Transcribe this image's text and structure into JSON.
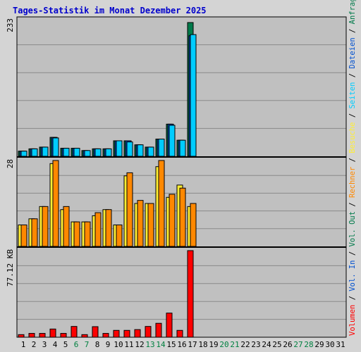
{
  "colors": {
    "background": "#d4d4d4",
    "plot_bg": "#c0c0c0",
    "frame": "#000000",
    "grid": "#8a8a8a",
    "title": "#0000cc",
    "anfragen": "#007a4a",
    "dateien": "#0050d0",
    "seiten": "#00ccff",
    "besuche": "#ffee33",
    "rechner": "#ff8800",
    "vol_out": "#007a4a",
    "vol_in": "#0050d0",
    "volumen": "#ff0000",
    "day_normal": "#000000",
    "day_weekend": "#008040"
  },
  "chart_data": {
    "type": "bar",
    "title": "Tages-Statistik im Monat Dezember 2025",
    "x": [
      "1",
      "2",
      "3",
      "4",
      "5",
      "6",
      "7",
      "8",
      "9",
      "10",
      "11",
      "12",
      "13",
      "14",
      "15",
      "16",
      "17",
      "18",
      "19",
      "20",
      "21",
      "22",
      "23",
      "24",
      "25",
      "26",
      "27",
      "28",
      "29",
      "30",
      "31"
    ],
    "weekend_days": [
      "6",
      "7",
      "13",
      "14",
      "20",
      "21",
      "27",
      "28"
    ],
    "panels": [
      {
        "ymax_label": "233",
        "ylim": [
          0,
          233
        ],
        "legend": [
          "Anfragen",
          "Dateien",
          "Seiten"
        ],
        "series": [
          {
            "name": "Anfragen",
            "values": [
              9,
              13,
              16,
              33,
              14,
              14,
              10,
              13,
              13,
              27,
              27,
              20,
              16,
              30,
              56,
              28,
              233,
              0,
              0,
              0,
              0,
              0,
              0,
              0,
              0,
              0,
              0,
              0,
              0,
              0,
              0
            ]
          },
          {
            "name": "Dateien",
            "values": [
              9,
              13,
              16,
              33,
              14,
              14,
              10,
              13,
              13,
              27,
              27,
              20,
              16,
              30,
              56,
              28,
              210,
              0,
              0,
              0,
              0,
              0,
              0,
              0,
              0,
              0,
              0,
              0,
              0,
              0,
              0
            ]
          },
          {
            "name": "Seiten",
            "values": [
              9,
              13,
              16,
              32,
              14,
              14,
              10,
              13,
              13,
              27,
              25,
              20,
              16,
              30,
              54,
              28,
              212,
              0,
              0,
              0,
              0,
              0,
              0,
              0,
              0,
              0,
              0,
              0,
              0,
              0,
              0
            ]
          }
        ]
      },
      {
        "ymax_label": "28",
        "ylim": [
          0,
          28
        ],
        "legend": [
          "Besuche",
          "Rechner"
        ],
        "series": [
          {
            "name": "Besuche",
            "values": [
              7,
              9,
              13,
              27,
              12,
              8,
              8,
              10,
              12,
              7,
              23,
              14,
              14,
              26,
              16,
              20,
              13,
              0,
              0,
              0,
              0,
              0,
              0,
              0,
              0,
              0,
              0,
              0,
              0,
              0,
              0
            ]
          },
          {
            "name": "Rechner",
            "values": [
              7,
              9,
              13,
              28,
              13,
              8,
              8,
              11,
              12,
              7,
              24,
              15,
              14,
              28,
              17,
              19,
              14,
              0,
              0,
              0,
              0,
              0,
              0,
              0,
              0,
              0,
              0,
              0,
              0,
              0,
              0
            ]
          }
        ]
      },
      {
        "ymax_label": "77.12 KB",
        "ylim": [
          0,
          77.12
        ],
        "legend": [
          "Volumen",
          "Vol. In",
          "Vol. Out"
        ],
        "series": [
          {
            "name": "Volumen",
            "values": [
              2.3,
              3.4,
              3.4,
              7.3,
              3.4,
              9.6,
              2.3,
              9.4,
              3.4,
              6.1,
              6.1,
              6.8,
              9.6,
              12.4,
              21.5,
              6.1,
              77.12,
              0,
              0,
              0,
              0,
              0,
              0,
              0,
              0,
              0,
              0,
              0,
              0,
              0,
              0
            ]
          }
        ]
      }
    ]
  }
}
